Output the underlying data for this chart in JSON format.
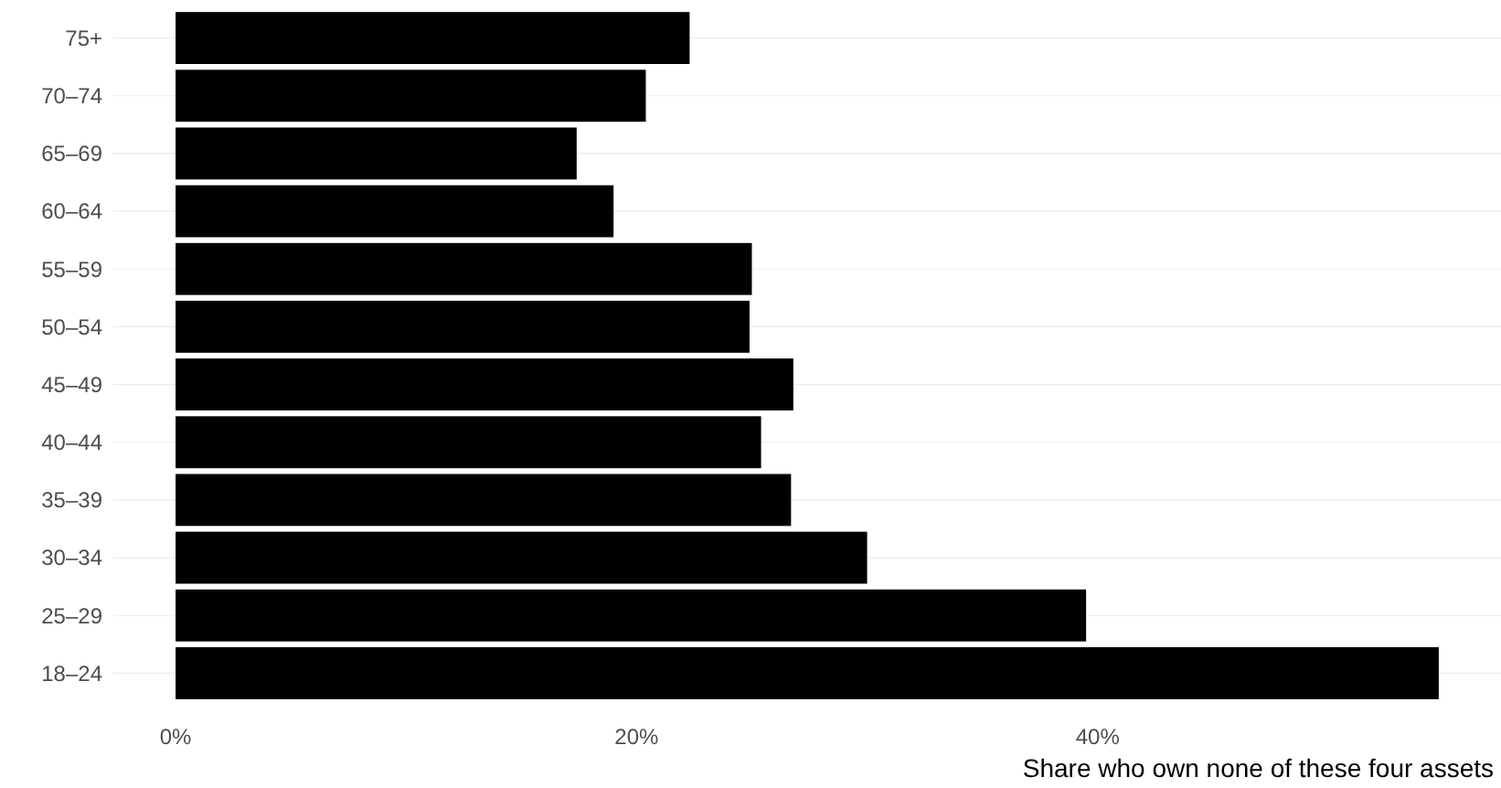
{
  "chart_data": {
    "type": "bar",
    "orientation": "horizontal",
    "xlabel": "Share who own none of these four assets",
    "categories": [
      "75+",
      "70–74",
      "65–69",
      "60–64",
      "55–59",
      "50–54",
      "45–49",
      "40–44",
      "35–39",
      "30–34",
      "25–29",
      "18–24"
    ],
    "values": [
      22.3,
      20.4,
      17.4,
      19.0,
      25.0,
      24.9,
      26.8,
      25.4,
      26.7,
      30.0,
      39.5,
      54.8
    ],
    "color": "#000000",
    "xlim": [
      -2.7,
      57.5
    ],
    "xticks": [
      {
        "value": 0,
        "label": "0%"
      },
      {
        "value": 20,
        "label": "20%"
      },
      {
        "value": 40,
        "label": "40%"
      }
    ],
    "grid": "y"
  }
}
